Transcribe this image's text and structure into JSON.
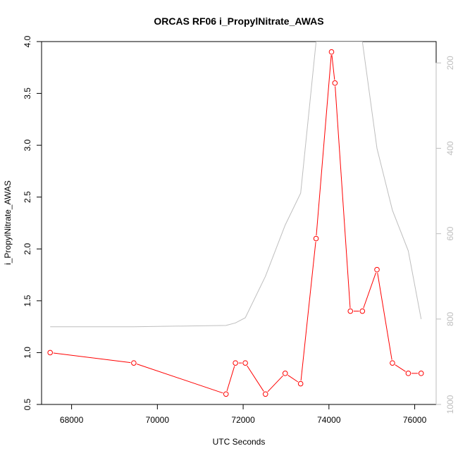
{
  "chart_data": {
    "type": "line",
    "title": "ORCAS RF06 i_PropylNitrate_AWAS",
    "xlabel": "UTC Seconds",
    "ylabel": "i_PropylNitrate_AWAS",
    "xlim": [
      67300,
      76500
    ],
    "ylim": [
      0.5,
      4.0
    ],
    "x_ticks": [
      68000,
      70000,
      72000,
      74000,
      76000
    ],
    "y_ticks": [
      0.5,
      1.0,
      1.5,
      2.0,
      2.5,
      3.0,
      3.5,
      4.0
    ],
    "series": [
      {
        "color": "#ff0000",
        "x": [
          67500,
          69450,
          71600,
          71820,
          72050,
          72520,
          72980,
          73340,
          73700,
          74060,
          74140,
          74500,
          74780,
          75120,
          75480,
          75850,
          76150
        ],
        "y": [
          1.0,
          0.9,
          0.6,
          0.9,
          0.9,
          0.6,
          0.8,
          0.7,
          2.1,
          3.9,
          3.6,
          1.4,
          1.4,
          1.8,
          0.9,
          0.8,
          0.8
        ]
      }
    ],
    "secondary_axis": {
      "side": "right",
      "color": "#bebebe",
      "reversed": true,
      "ylim": [
        1000,
        150
      ],
      "ticks": [
        200,
        400,
        600,
        800,
        1000
      ],
      "series": [
        {
          "color": "#bebebe",
          "x": [
            67500,
            69450,
            71600,
            71820,
            72050,
            72520,
            72980,
            73340,
            73700,
            74060,
            74140,
            74500,
            74780,
            75120,
            75480,
            75850,
            76150
          ],
          "y": [
            818,
            818,
            815,
            809,
            797,
            700,
            580,
            505,
            150,
            150,
            150,
            150,
            150,
            400,
            545,
            640,
            800
          ]
        }
      ]
    }
  }
}
